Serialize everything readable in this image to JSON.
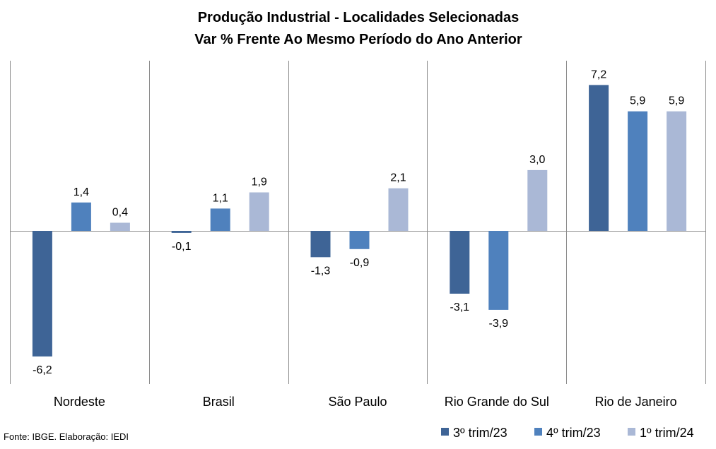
{
  "chart_data": {
    "type": "bar",
    "title": "Produção Industrial - Localidades Selecionadas",
    "subtitle": "Var % Frente Ao Mesmo Período do Ano Anterior",
    "categories": [
      "Nordeste",
      "Brasil",
      "São Paulo",
      "Rio Grande do Sul",
      "Rio de Janeiro"
    ],
    "series": [
      {
        "name": "3º trim/23",
        "color": "#3E6496",
        "values": [
          -6.2,
          -0.1,
          -1.3,
          -3.1,
          7.2
        ]
      },
      {
        "name": "4º trim/23",
        "color": "#4F81BD",
        "values": [
          1.4,
          1.1,
          -0.9,
          -3.9,
          5.9
        ]
      },
      {
        "name": "1º trim/24",
        "color": "#AAB8D6",
        "values": [
          0.4,
          1.9,
          2.1,
          3.0,
          5.9
        ]
      }
    ],
    "value_labels": [
      [
        "-6,2",
        "-0,1",
        "-1,3",
        "-3,1",
        "7,2"
      ],
      [
        "1,4",
        "1,1",
        "-0,9",
        "-3,9",
        "5,9"
      ],
      [
        "0,4",
        "1,9",
        "2,1",
        "3,0",
        "5,9"
      ]
    ],
    "ylim": [
      -7.0,
      8.0
    ],
    "grid": false,
    "legend_position": "bottom-right"
  },
  "source": "Fonte: IBGE. Elaboração: IEDI"
}
